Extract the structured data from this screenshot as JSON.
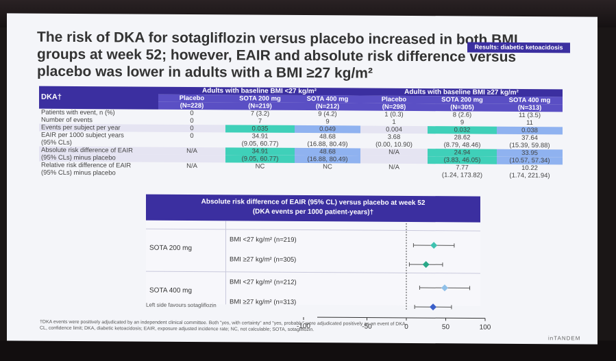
{
  "title": "The risk of DKA for sotagliflozin versus placebo increased in both BMI groups at week 52; however, EAIR and absolute risk difference versus placebo was lower in adults with a BMI ≥27 kg/m²",
  "badge": "Results: diabetic ketoacidosis",
  "table": {
    "corner": "DKA†",
    "group1": "Adults with baseline BMI <27 kg/m²",
    "group2": "Adults with baseline BMI ≥27 kg/m²",
    "columns": [
      {
        "name": "Placebo",
        "n": "(N=228)"
      },
      {
        "name": "SOTA 200 mg",
        "n": "(N=219)"
      },
      {
        "name": "SOTA 400 mg",
        "n": "(N=212)"
      },
      {
        "name": "Placebo",
        "n": "(N=298)"
      },
      {
        "name": "SOTA 200 mg",
        "n": "(N=305)"
      },
      {
        "name": "SOTA 400 mg",
        "n": "(N=313)"
      }
    ],
    "rows": [
      {
        "label": "Patients with event, n (%)",
        "cells": [
          "0",
          "7 (3.2)",
          "9 (4.2)",
          "1 (0.3)",
          "8 (2.6)",
          "11 (3.5)"
        ]
      },
      {
        "label": "Number of events",
        "cells": [
          "0",
          "7",
          "9",
          "1",
          "9",
          "11"
        ]
      },
      {
        "label": "Events per subject per year",
        "cells": [
          "0",
          "0.035",
          "0.049",
          "0.004",
          "0.032",
          "0.038"
        ]
      },
      {
        "label": "EAIR per 1000 subject years",
        "cells": [
          "0",
          "34.91",
          "48.68",
          "3.68",
          "28.62",
          "37.64"
        ]
      },
      {
        "label": "(95% CLs)",
        "cells": [
          "",
          "(9.05, 60.77)",
          "(16.88, 80.49)",
          "(0.00, 10.90)",
          "(8.79, 48.46)",
          "(15.39, 59.88)"
        ]
      },
      {
        "label": "Absolute risk difference of EAIR",
        "cells": [
          "N/A",
          "34.91",
          "48.68",
          "N/A",
          "24.94",
          "33.95"
        ]
      },
      {
        "label": "(95% CLs) minus placebo",
        "cells": [
          "",
          "(9.05, 60.77)",
          "(16.88, 80.49)",
          "",
          "(3.83, 46.05)",
          "(10.57, 57.34)"
        ]
      },
      {
        "label": "Relative risk difference of EAIR",
        "cells": [
          "N/A",
          "NC",
          "NC",
          "N/A",
          "7.77",
          "10.22"
        ]
      },
      {
        "label": "(95% CLs) minus placebo",
        "cells": [
          "",
          "",
          "",
          "",
          "(1.24, 173.82)",
          "(1.74, 221.94)"
        ]
      }
    ]
  },
  "forest": {
    "title1": "Absolute risk difference of EAIR (95% CL) versus placebo at week 52",
    "title2": "(DKA events per 1000 patient-years)†",
    "groups": [
      {
        "name": "SOTA 200 mg",
        "rows": [
          {
            "label": "BMI <27 kg/m² (n=219)",
            "est": 34.91,
            "lo": 9.05,
            "hi": 60.77,
            "color": "#3fc2b0"
          },
          {
            "label": "BMI ≥27 kg/m² (n=305)",
            "est": 24.94,
            "lo": 3.83,
            "hi": 46.05,
            "color": "#2aa888"
          }
        ]
      },
      {
        "name": "SOTA 400 mg",
        "rows": [
          {
            "label": "BMI <27 kg/m² (n=212)",
            "est": 48.68,
            "lo": 16.88,
            "hi": 80.49,
            "color": "#8fc0e8"
          },
          {
            "label": "BMI ≥27 kg/m² (n=313)",
            "est": 33.95,
            "lo": 10.57,
            "hi": 57.34,
            "color": "#3b5fc9"
          }
        ]
      }
    ],
    "ticks": [
      "-100",
      "-50",
      "0",
      "50",
      "100"
    ],
    "left_note": "Left side favours sotagliflozin"
  },
  "footnote1": "†DKA events were positively adjudicated by an independent clinical committee. Both \"yes, with certainty\" and \"yes, probably\" were adjudicated positively as an event of DKA.",
  "footnote2": "CL, confidence limit; DKA, diabetic ketoacidosis; EAIR, exposure adjusted incidence rate; NC, not calculable; SOTA, sotagliflozin.",
  "logo": "inTANDEM"
}
